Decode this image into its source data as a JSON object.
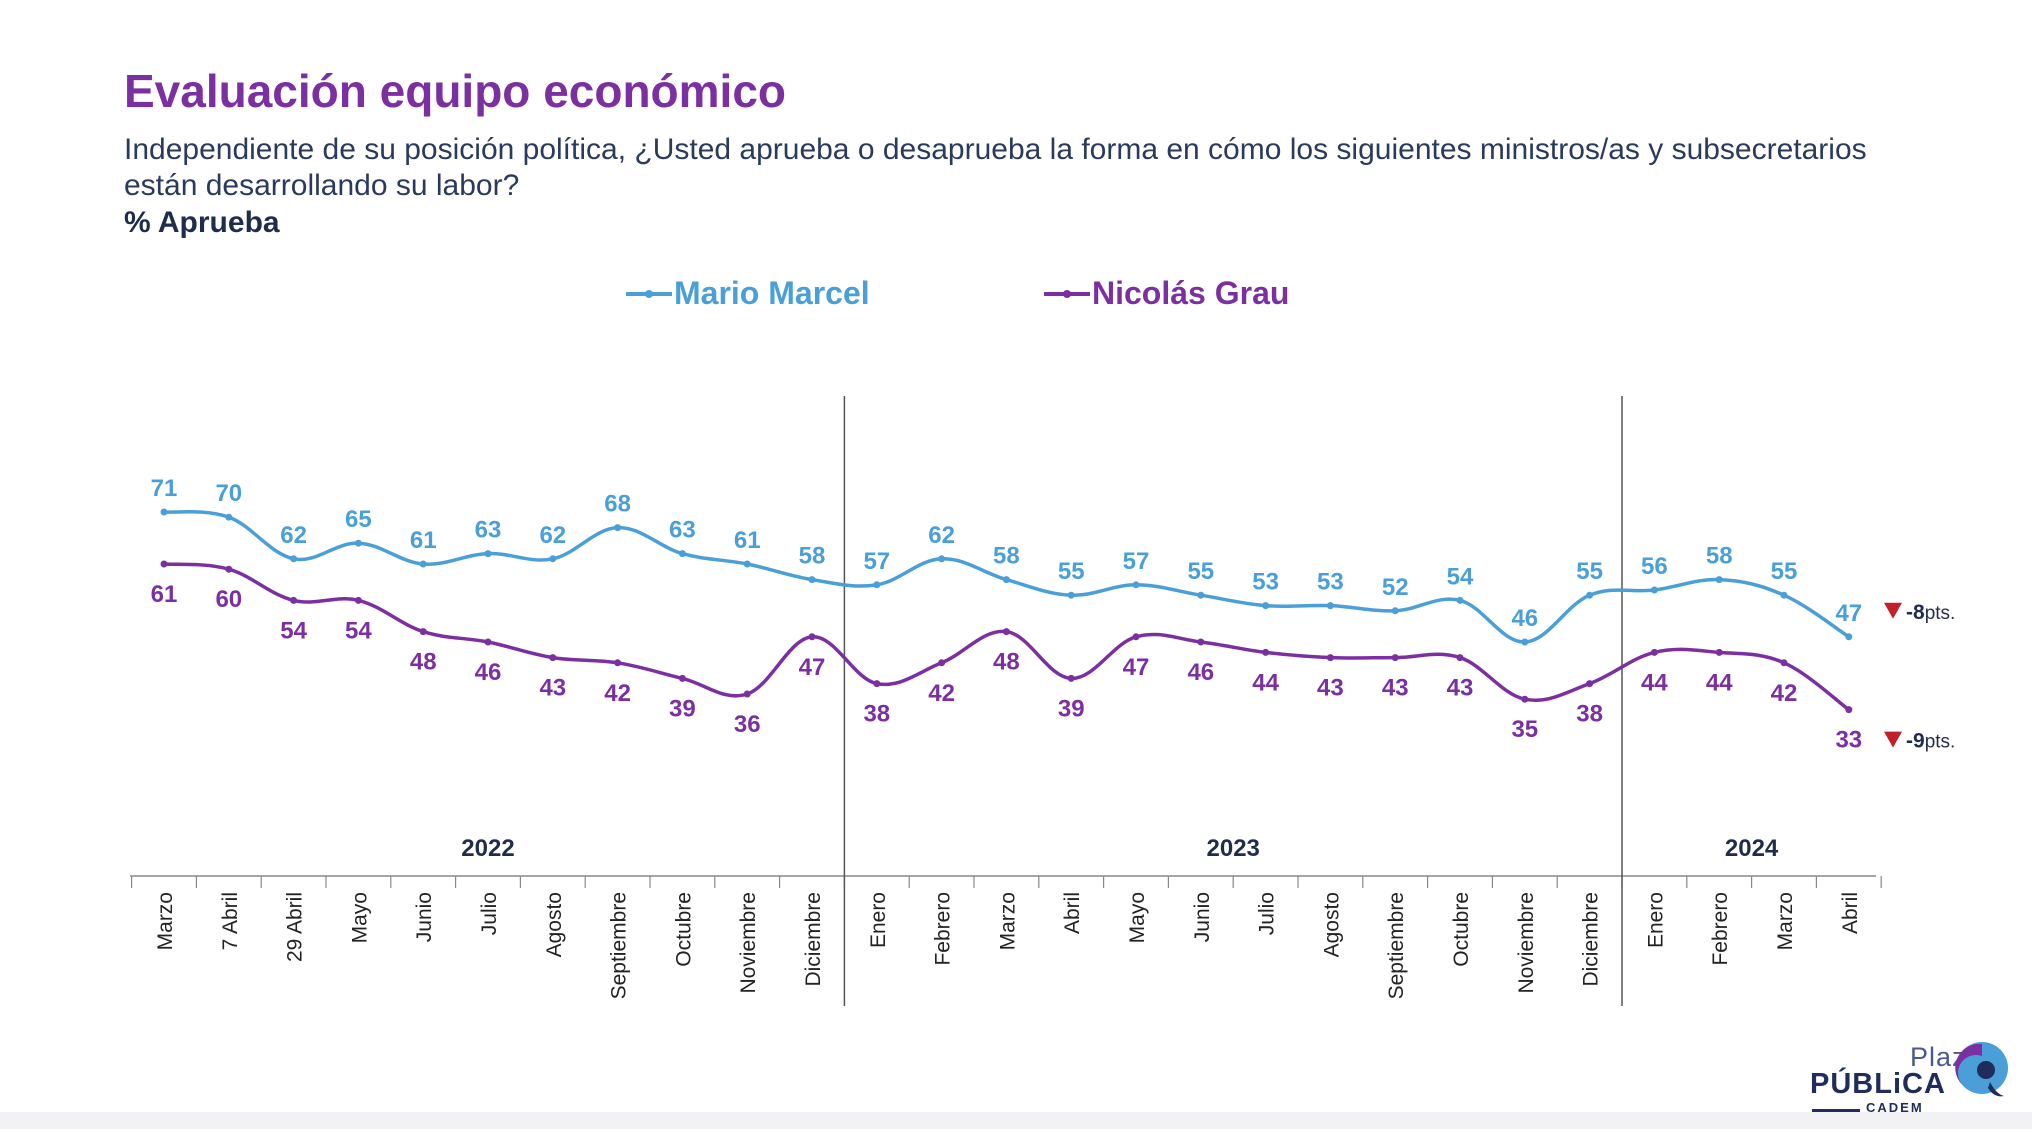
{
  "header": {
    "title": "Evaluación equipo económico",
    "question": "Independiente de su posición política, ¿Usted aprueba o desaprueba la forma en cómo los siguientes ministros/as y subsecretarios están desarrollando su labor?",
    "measure": "% Aprueba"
  },
  "colors": {
    "marcel": "#4a9fd8",
    "grau": "#7b2fa0",
    "axis": "#888888",
    "year_label": "#1f2c4c",
    "change_marker": "#c0202a",
    "change_text": "#1f2c4c"
  },
  "chart_data": {
    "type": "line",
    "title": "Evaluación equipo económico",
    "xlabel": "",
    "ylabel": "% Aprueba",
    "ylim": [
      0,
      100
    ],
    "grid": false,
    "legend": "top-center",
    "categories": [
      "Marzo",
      "7 Abril",
      "29 Abril",
      "Mayo",
      "Junio",
      "Julio",
      "Agosto",
      "Septiembre",
      "Octubre",
      "Noviembre",
      "Diciembre",
      "Enero",
      "Febrero",
      "Marzo",
      "Abril",
      "Mayo",
      "Junio",
      "Julio",
      "Agosto",
      "Septiembre",
      "Octubre",
      "Noviembre",
      "Diciembre",
      "Enero",
      "Febrero",
      "Marzo",
      "Abril"
    ],
    "years": [
      {
        "label": "2022",
        "start": 0,
        "end": 10
      },
      {
        "label": "2023",
        "start": 11,
        "end": 22
      },
      {
        "label": "2024",
        "start": 23,
        "end": 26
      }
    ],
    "series": [
      {
        "name": "Mario Marcel",
        "values": [
          71,
          70,
          62,
          65,
          61,
          63,
          62,
          68,
          63,
          61,
          58,
          57,
          62,
          58,
          55,
          57,
          55,
          53,
          53,
          52,
          54,
          46,
          55,
          56,
          58,
          55,
          47
        ],
        "change": "-8",
        "change_unit": "pts."
      },
      {
        "name": "Nicolás Grau",
        "values": [
          61,
          60,
          54,
          54,
          48,
          46,
          43,
          42,
          39,
          36,
          47,
          38,
          42,
          48,
          39,
          47,
          46,
          44,
          43,
          43,
          43,
          35,
          38,
          44,
          44,
          42,
          33
        ],
        "change": "-9",
        "change_unit": "pts."
      }
    ]
  },
  "logo": {
    "line1": "Plaza",
    "line2": "PÚBLiCA",
    "line3": "CADEM"
  }
}
